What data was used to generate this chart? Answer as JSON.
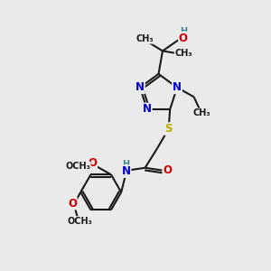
{
  "bg": "#eaeaea",
  "col": {
    "bond": "#1a1a1a",
    "N": "#0000cc",
    "O": "#cc0000",
    "S": "#bbaa00",
    "H": "#3a8888",
    "C": "#1a1a1a"
  },
  "lw": 1.5,
  "fs": 8.5,
  "fs_small": 7.0,
  "xlim": [
    0,
    10
  ],
  "ylim": [
    0,
    10
  ]
}
